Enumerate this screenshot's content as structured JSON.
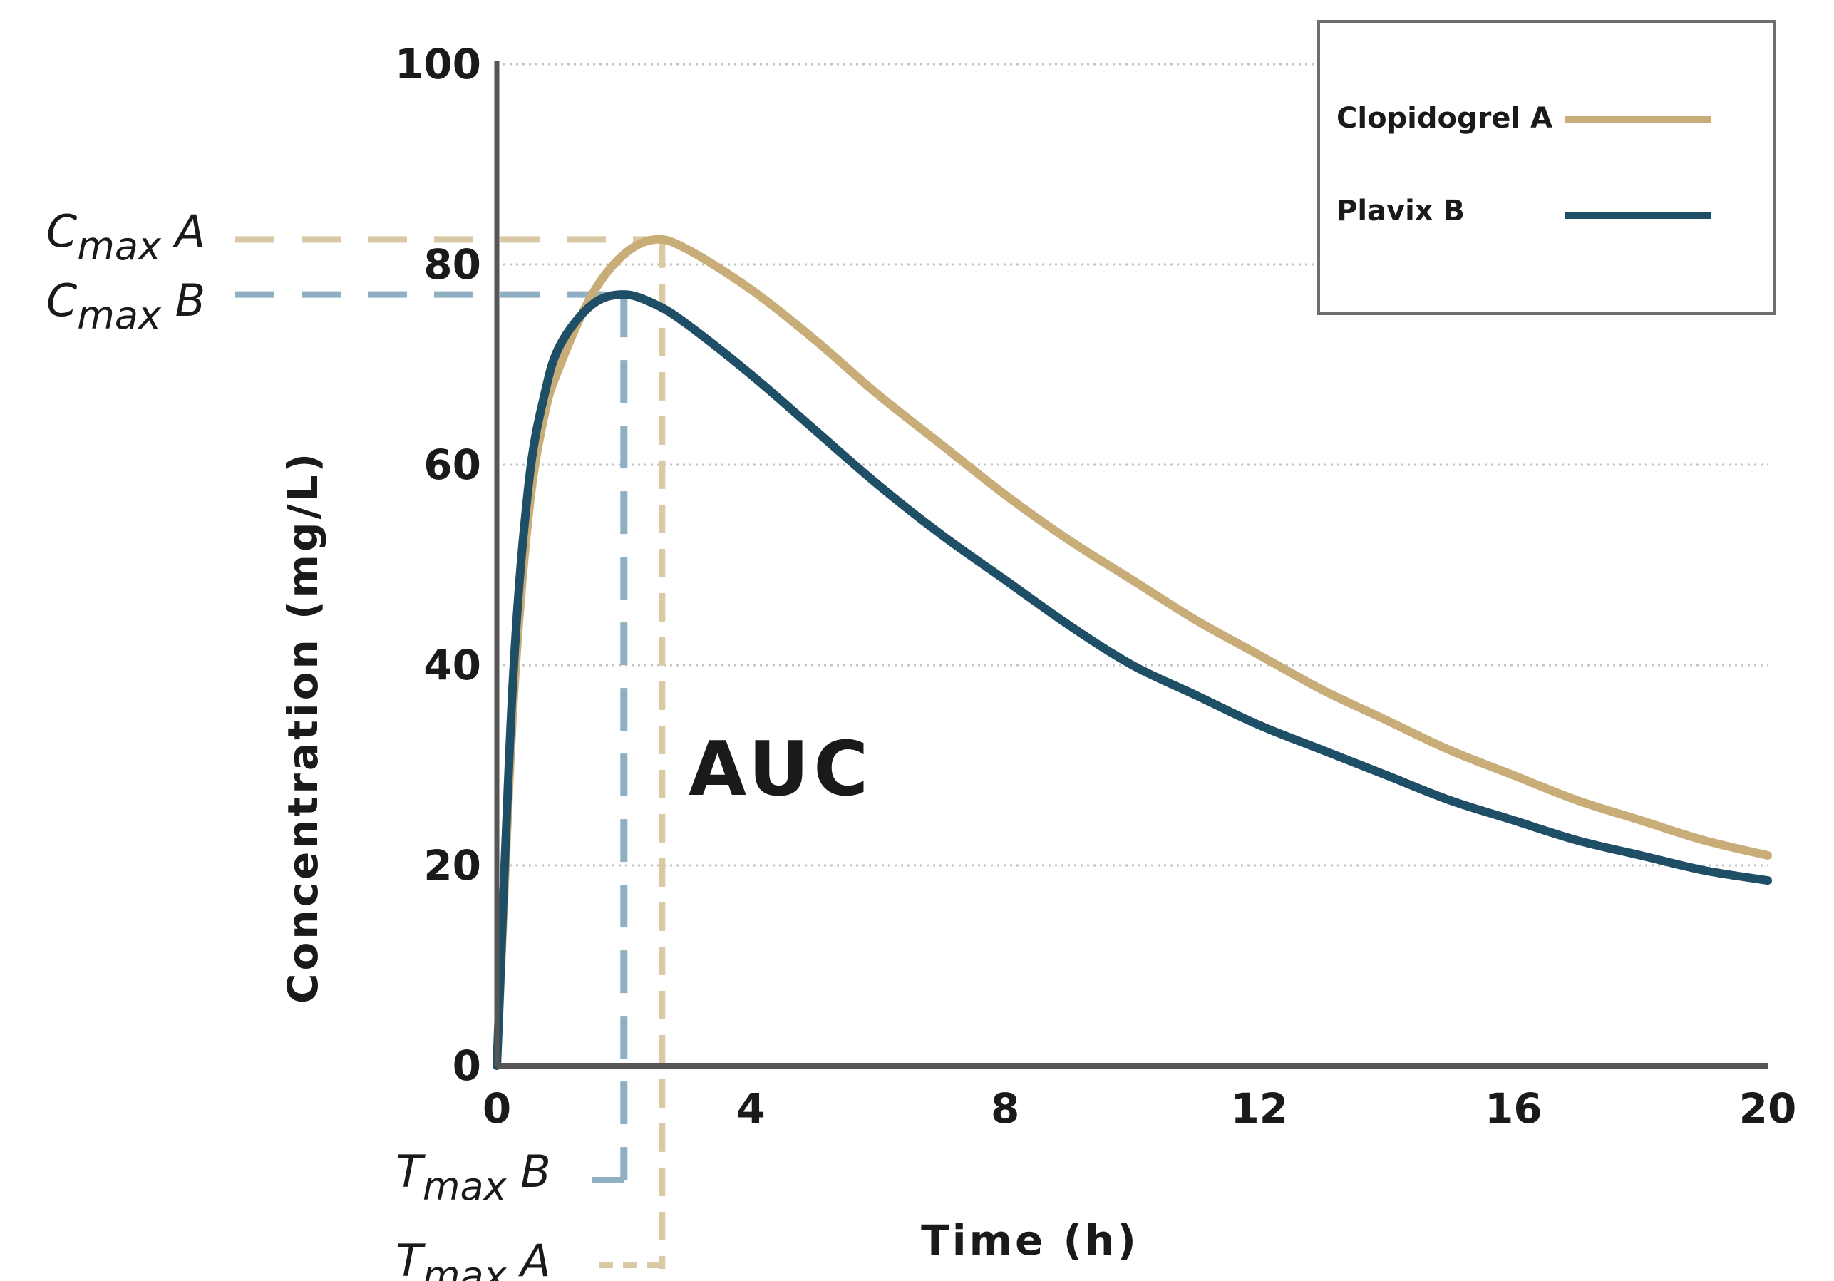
{
  "chart_data": {
    "type": "line",
    "xlabel": "Time (h)",
    "ylabel": "Concentration (mg/L)",
    "xlim": [
      0,
      20
    ],
    "ylim": [
      0,
      100
    ],
    "x_ticks": [
      0,
      4,
      8,
      12,
      16,
      20
    ],
    "y_ticks": [
      0,
      20,
      40,
      60,
      80,
      100
    ],
    "grid": "horizontal-dotted",
    "legend_position": "top-right",
    "series": [
      {
        "name": "Clopidogrel A",
        "color": "#c9ad78",
        "x": [
          0,
          0.25,
          0.5,
          0.75,
          1,
          1.5,
          2,
          2.5,
          3,
          4,
          5,
          6,
          7,
          8,
          9,
          10,
          11,
          12,
          13,
          14,
          15,
          16,
          17,
          18,
          19,
          20
        ],
        "y": [
          0,
          35,
          55,
          65,
          70,
          77,
          81,
          82.5,
          81.5,
          77.5,
          72.5,
          67,
          62,
          57,
          52.5,
          48.5,
          44.5,
          41,
          37.5,
          34.5,
          31.5,
          29,
          26.5,
          24.5,
          22.5,
          21
        ]
      },
      {
        "name": "Plavix B",
        "color": "#1e4f66",
        "x": [
          0,
          0.25,
          0.5,
          0.75,
          1,
          1.5,
          2,
          2.5,
          3,
          4,
          5,
          6,
          7,
          8,
          9,
          10,
          11,
          12,
          13,
          14,
          15,
          16,
          17,
          18,
          19,
          20
        ],
        "y": [
          0,
          38,
          58,
          67,
          72,
          76,
          77,
          76,
          74,
          69,
          63.5,
          58,
          53,
          48.5,
          44,
          40,
          37,
          34,
          31.5,
          29,
          26.5,
          24.5,
          22.5,
          21,
          19.5,
          18.5
        ]
      }
    ],
    "annotations": {
      "cmax_a": {
        "label": "C",
        "sub": "max",
        "suffix": " A",
        "value": 82.5
      },
      "cmax_b": {
        "label": "C",
        "sub": "max",
        "suffix": " B",
        "value": 77
      },
      "tmax_a": {
        "label": "T",
        "sub": "max",
        "suffix": " A",
        "value": 2.6
      },
      "tmax_b": {
        "label": "T",
        "sub": "max",
        "suffix": " B",
        "value": 2.0
      },
      "auc": "AUC"
    }
  }
}
